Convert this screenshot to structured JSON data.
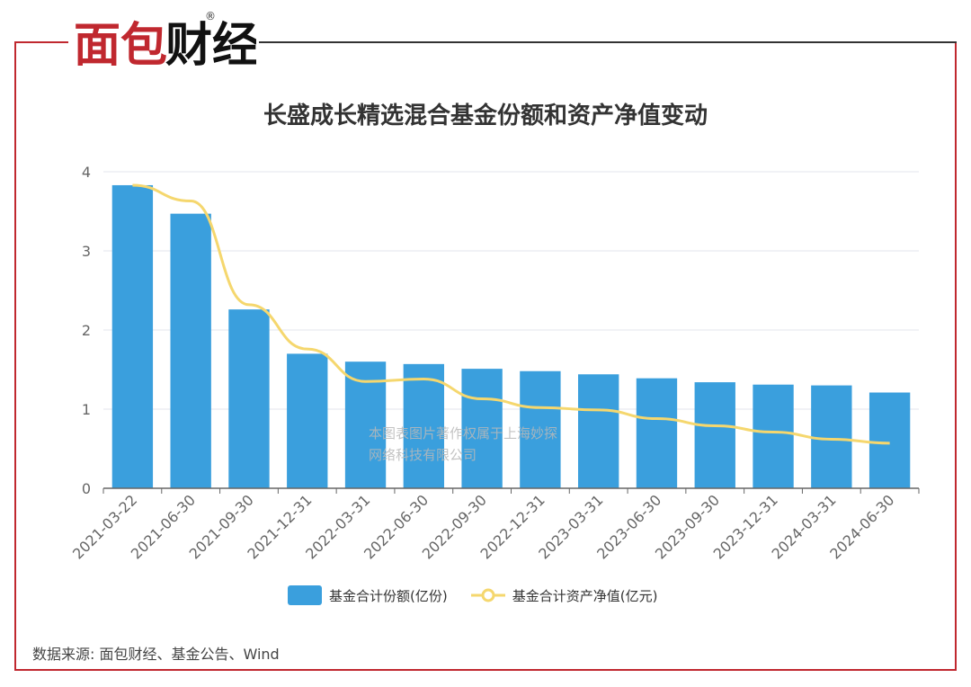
{
  "brand": {
    "logo_text": "面包财经",
    "registered_mark": "®",
    "frame_color": "#c0282f"
  },
  "watermark": {
    "line1": "本图表图片著作权属于上海妙探",
    "line2": "网络科技有限公司"
  },
  "source_note": "数据来源: 面包财经、基金公告、Wind",
  "chart_data": {
    "type": "bar",
    "title": "长盛成长精选混合基金份额和资产净值变动",
    "categories": [
      "2021-03-22",
      "2021-06-30",
      "2021-09-30",
      "2021-12-31",
      "2022-03-31",
      "2022-06-30",
      "2022-09-30",
      "2022-12-31",
      "2023-03-31",
      "2023-06-30",
      "2023-09-30",
      "2023-12-31",
      "2024-03-31",
      "2024-06-30"
    ],
    "series": [
      {
        "name": "基金合计份额(亿份)",
        "type": "bar",
        "color": "#3a9fdd",
        "values": [
          3.83,
          3.47,
          2.26,
          1.7,
          1.6,
          1.57,
          1.51,
          1.48,
          1.44,
          1.39,
          1.34,
          1.31,
          1.3,
          1.21
        ]
      },
      {
        "name": "基金合计资产净值(亿元)",
        "type": "line",
        "color": "#f5d76e",
        "values": [
          3.83,
          3.63,
          2.32,
          1.76,
          1.35,
          1.38,
          1.13,
          1.02,
          0.99,
          0.88,
          0.79,
          0.71,
          0.62,
          0.57
        ]
      }
    ],
    "ylim": [
      0,
      4
    ],
    "yticks": [
      0,
      1,
      2,
      3,
      4
    ],
    "grid": true,
    "legend_position": "bottom"
  }
}
